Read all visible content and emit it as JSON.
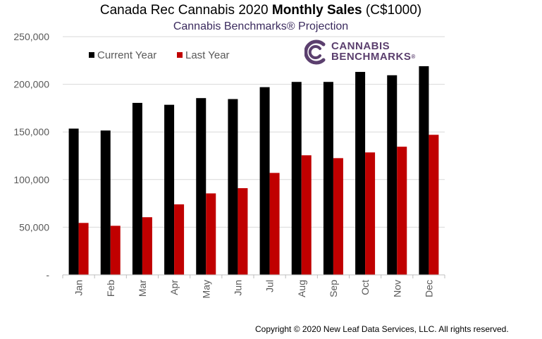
{
  "title_regular": "Canada Rec Cannabis 2020",
  "title_bold": "Monthly Sales",
  "title_unit": "(C$1000)",
  "subtitle": "Cannabis Benchmarks® Projection",
  "copyright": "Copyright © 2020 New Leaf Data Services, LLC. All rights reserved.",
  "logo": {
    "line1": "CANNABIS",
    "line2": "BENCHMARKS",
    "trademark": "®",
    "icon": "cannabis-benchmarks-logo-icon"
  },
  "colors": {
    "current_year": "#000000",
    "last_year": "#c00000",
    "subtitle": "#3b2b5e",
    "logo": "#5b3f6e",
    "grid": "#d9d9d9",
    "tick": "#595959"
  },
  "chart_data": {
    "type": "bar",
    "title": "Canada Rec Cannabis 2020 Monthly Sales (C$1000)",
    "subtitle": "Cannabis Benchmarks® Projection",
    "xlabel": "",
    "ylabel": "",
    "ylim": [
      0,
      250000
    ],
    "yticks": [
      0,
      50000,
      100000,
      150000,
      200000,
      250000
    ],
    "ytick_labels": [
      "-",
      "50,000",
      "100,000",
      "150,000",
      "200,000",
      "250,000"
    ],
    "grid": true,
    "legend_position": "top-left",
    "categories": [
      "Jan",
      "Feb",
      "Mar",
      "Apr",
      "May",
      "Jun",
      "Jul",
      "Aug",
      "Sep",
      "Oct",
      "Nov",
      "Dec"
    ],
    "series": [
      {
        "name": "Current Year",
        "color": "#000000",
        "values": [
          153500,
          151500,
          180500,
          178500,
          185500,
          184500,
          197000,
          202500,
          202500,
          213000,
          209500,
          219000
        ]
      },
      {
        "name": "Last Year",
        "color": "#c00000",
        "values": [
          54500,
          51500,
          60500,
          74000,
          85500,
          91000,
          107000,
          125500,
          122500,
          128500,
          134500,
          147000
        ]
      }
    ]
  }
}
